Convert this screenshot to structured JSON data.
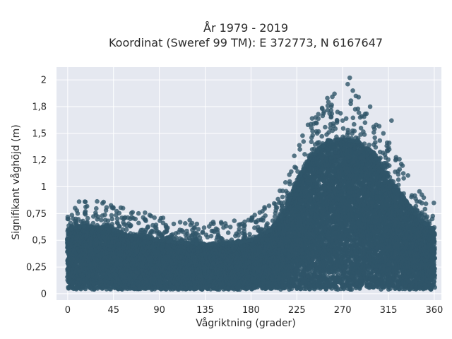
{
  "chart_data": {
    "type": "scatter",
    "title_lines": [
      "År 1979 - 2019",
      "Koordinat (Sweref 99 TM): E 372773, N 6167647"
    ],
    "xlabel": "Vågriktning (grader)",
    "ylabel": "Signifikant våghöjd (m)",
    "xlim": [
      -11,
      367
    ],
    "ylim": [
      -0.06,
      2.12
    ],
    "x_ticks": [
      0,
      45,
      90,
      135,
      180,
      225,
      270,
      315,
      360
    ],
    "x_tick_labels": [
      "0",
      "45",
      "90",
      "135",
      "180",
      "225",
      "270",
      "315",
      "360"
    ],
    "y_ticks": [
      0,
      0.25,
      0.5,
      0.75,
      1,
      1.25,
      1.5,
      1.75,
      2
    ],
    "y_tick_labels": [
      "0",
      "0,25",
      "0,5",
      "0,75",
      "1",
      "1,2",
      "1,5",
      "1,8",
      "2"
    ],
    "grid": true,
    "marker_color": "#2f5569",
    "background_color": "#e5e8f0",
    "envelope_note_free": true,
    "upper_envelope": [
      [
        0,
        0.6
      ],
      [
        10,
        0.62
      ],
      [
        20,
        0.64
      ],
      [
        30,
        0.62
      ],
      [
        45,
        0.6
      ],
      [
        60,
        0.55
      ],
      [
        90,
        0.5
      ],
      [
        120,
        0.47
      ],
      [
        150,
        0.46
      ],
      [
        180,
        0.5
      ],
      [
        200,
        0.6
      ],
      [
        215,
        0.82
      ],
      [
        225,
        1.05
      ],
      [
        240,
        1.3
      ],
      [
        255,
        1.42
      ],
      [
        270,
        1.45
      ],
      [
        285,
        1.42
      ],
      [
        300,
        1.32
      ],
      [
        315,
        1.1
      ],
      [
        330,
        0.9
      ],
      [
        345,
        0.7
      ],
      [
        360,
        0.6
      ]
    ],
    "lower_bound": 0.04,
    "outliers": [
      [
        0,
        0.7
      ],
      [
        8,
        0.7
      ],
      [
        15,
        0.68
      ],
      [
        25,
        0.66
      ],
      [
        30,
        0.72
      ],
      [
        38,
        0.64
      ],
      [
        55,
        0.7
      ],
      [
        62,
        0.64
      ],
      [
        82,
        0.58
      ],
      [
        100,
        0.53
      ],
      [
        112,
        0.5
      ],
      [
        150,
        0.49
      ],
      [
        175,
        0.52
      ],
      [
        195,
        0.62
      ],
      [
        210,
        0.78
      ],
      [
        218,
        1.05
      ],
      [
        228,
        1.35
      ],
      [
        236,
        1.58
      ],
      [
        240,
        1.64
      ],
      [
        245,
        1.5
      ],
      [
        250,
        1.73
      ],
      [
        255,
        1.83
      ],
      [
        258,
        1.55
      ],
      [
        262,
        1.87
      ],
      [
        265,
        1.7
      ],
      [
        270,
        1.62
      ],
      [
        275,
        1.96
      ],
      [
        277,
        2.02
      ],
      [
        280,
        1.9
      ],
      [
        283,
        1.85
      ],
      [
        285,
        1.73
      ],
      [
        288,
        1.55
      ],
      [
        292,
        1.6
      ],
      [
        297,
        1.75
      ],
      [
        303,
        1.58
      ],
      [
        310,
        1.5
      ],
      [
        315,
        1.37
      ],
      [
        318,
        1.62
      ],
      [
        322,
        1.25
      ],
      [
        330,
        1.08
      ],
      [
        338,
        0.92
      ],
      [
        342,
        0.82
      ],
      [
        348,
        0.76
      ],
      [
        353,
        0.72
      ],
      [
        358,
        0.7
      ],
      [
        360,
        0.62
      ]
    ]
  }
}
